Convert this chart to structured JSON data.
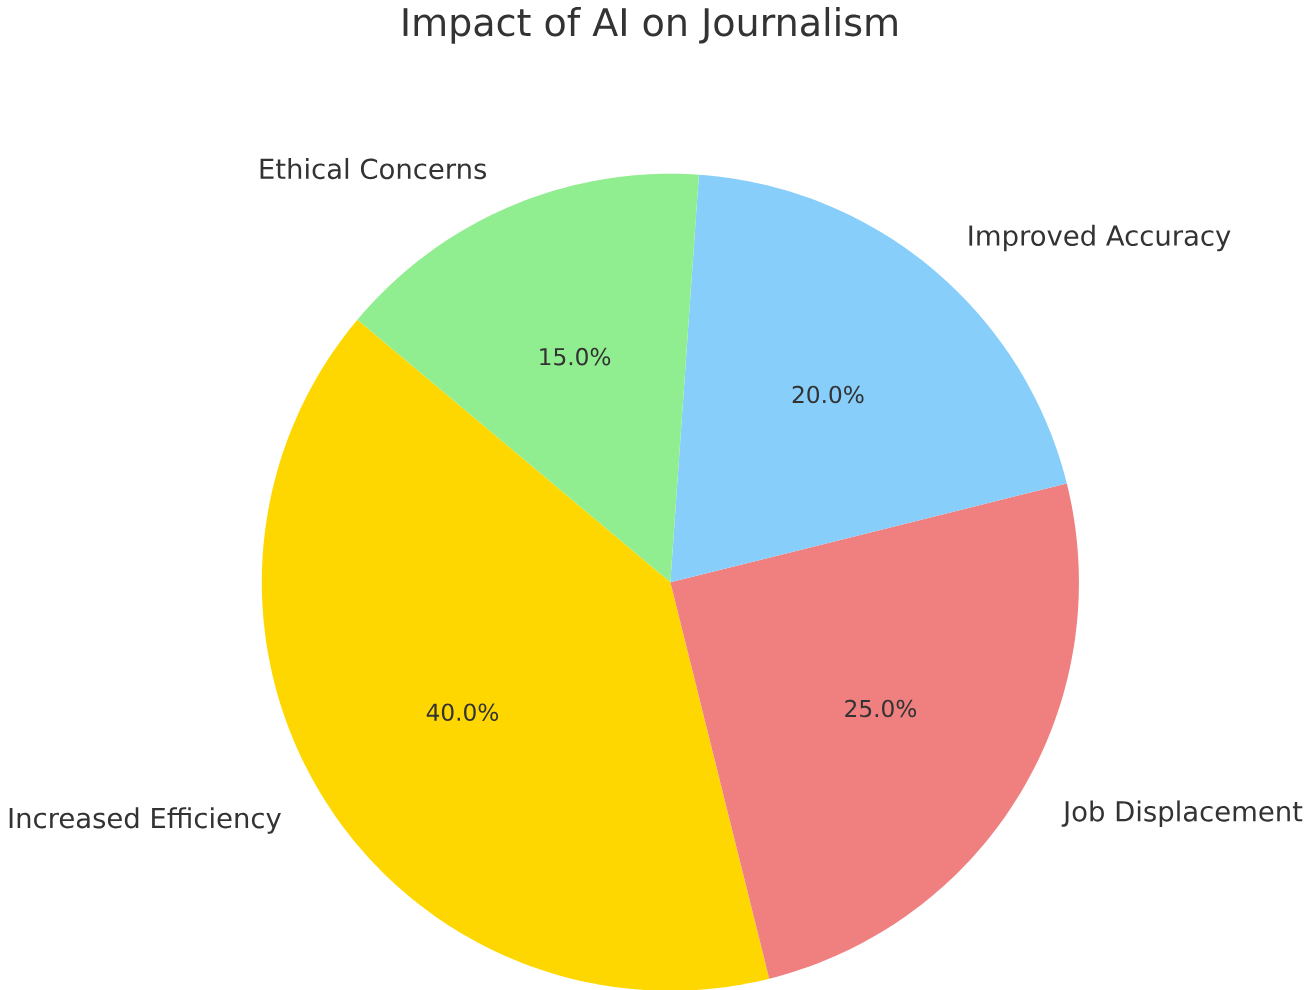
{
  "chart_data": {
    "type": "pie",
    "title": "Impact of AI on Journalism",
    "categories": [
      "Increased Efficiency",
      "Job Displacement",
      "Improved Accuracy",
      "Ethical Concerns"
    ],
    "values": [
      40,
      25,
      20,
      15
    ],
    "value_labels": [
      "40.0%",
      "25.0%",
      "20.0%",
      "15.0%"
    ],
    "colors": [
      "#ffd700",
      "#f08080",
      "#87cefa",
      "#90ee90"
    ]
  }
}
